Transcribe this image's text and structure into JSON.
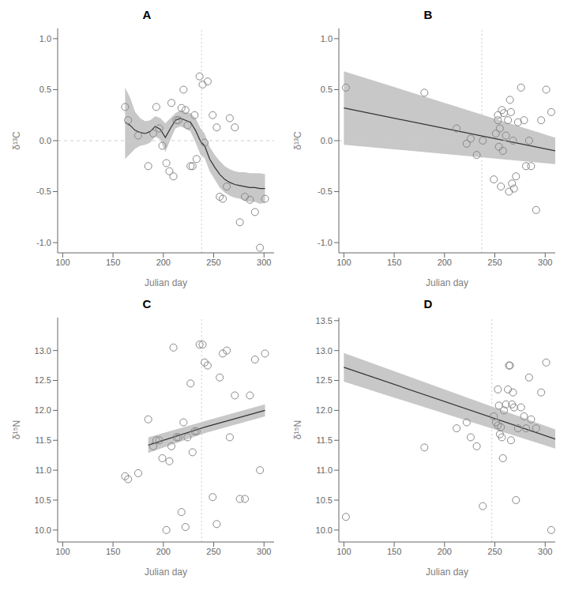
{
  "chart_data": [
    {
      "type": "scatter",
      "title": "A",
      "x_label": "Julian day",
      "y_label": "δ¹³C",
      "grid": false,
      "xlim": [
        95,
        310
      ],
      "xticks": [
        100,
        150,
        200,
        250,
        300
      ],
      "ylim": [
        -1.1,
        1.1
      ],
      "yticks": [
        {
          "value": -1.0,
          "label": "-1.0"
        },
        -0.5,
        {
          "value": 0.0,
          "label": "0.0"
        },
        0.5,
        {
          "value": 1.0,
          "label": "1.0"
        }
      ],
      "vline": 238,
      "hline": 0,
      "series": [
        {
          "type": "band",
          "color": "#c8c8c8",
          "x": [
            162,
            167,
            172,
            177,
            182,
            187,
            192,
            197,
            202,
            207,
            212,
            217,
            222,
            227,
            232,
            237,
            241,
            246,
            251,
            256,
            261,
            266,
            271,
            276,
            281,
            286,
            291,
            296,
            301
          ],
          "upper": [
            0.52,
            0.42,
            0.28,
            0.22,
            0.19,
            0.2,
            0.24,
            0.22,
            0.17,
            0.22,
            0.27,
            0.3,
            0.28,
            0.27,
            0.22,
            0.12,
            0.07,
            -0.06,
            -0.14,
            -0.2,
            -0.25,
            -0.28,
            -0.3,
            -0.31,
            -0.31,
            -0.32,
            -0.32,
            -0.32,
            -0.33
          ],
          "lower": [
            -0.18,
            -0.13,
            -0.08,
            -0.05,
            -0.04,
            -0.02,
            0.04,
            0.01,
            -0.11,
            0.01,
            0.12,
            0.14,
            0.12,
            0.09,
            -0.02,
            -0.14,
            -0.17,
            -0.3,
            -0.38,
            -0.46,
            -0.51,
            -0.54,
            -0.56,
            -0.57,
            -0.59,
            -0.6,
            -0.6,
            -0.62,
            -0.61
          ]
        },
        {
          "type": "line",
          "color": "#333333",
          "x": [
            162,
            167,
            172,
            177,
            182,
            187,
            192,
            197,
            202,
            207,
            212,
            217,
            222,
            227,
            232,
            237,
            241,
            246,
            251,
            256,
            261,
            266,
            271,
            276,
            281,
            286,
            291,
            296,
            301
          ],
          "values": [
            0.18,
            0.15,
            0.1,
            0.08,
            0.07,
            0.09,
            0.14,
            0.11,
            0.03,
            0.12,
            0.2,
            0.22,
            0.2,
            0.18,
            0.1,
            -0.01,
            -0.05,
            -0.18,
            -0.26,
            -0.33,
            -0.38,
            -0.41,
            -0.43,
            -0.44,
            -0.45,
            -0.46,
            -0.46,
            -0.47,
            -0.47
          ]
        },
        {
          "type": "scatter",
          "color": "#888888",
          "marker": "circle",
          "x": [
            162,
            165,
            175,
            185,
            190,
            193,
            196,
            199,
            203,
            206,
            208,
            210,
            213,
            215,
            218,
            220,
            222,
            224,
            227,
            229,
            231,
            233,
            236,
            239,
            241,
            244,
            249,
            253,
            256,
            259,
            263,
            266,
            271,
            276,
            281,
            286,
            291,
            296,
            301
          ],
          "values": [
            0.33,
            0.2,
            0.05,
            -0.25,
            0.07,
            0.33,
            0.12,
            -0.05,
            -0.22,
            -0.3,
            0.37,
            -0.35,
            0.2,
            0.2,
            0.32,
            0.5,
            0.3,
            0.15,
            -0.25,
            -0.25,
            0.25,
            -0.18,
            0.63,
            0.55,
            -0.02,
            0.58,
            0.25,
            0.13,
            -0.55,
            -0.57,
            -0.45,
            0.22,
            0.13,
            -0.8,
            -0.55,
            -0.58,
            -0.7,
            -1.05,
            -0.57
          ]
        }
      ]
    },
    {
      "type": "scatter",
      "title": "B",
      "x_label": "Julian day",
      "y_label": "δ¹³C",
      "grid": false,
      "xlim": [
        95,
        310
      ],
      "xticks": [
        100,
        150,
        200,
        250,
        300
      ],
      "ylim": [
        -1.1,
        1.1
      ],
      "yticks": [
        {
          "value": -1.0,
          "label": "-1.0"
        },
        -0.5,
        {
          "value": 0.0,
          "label": "0.0"
        },
        0.5,
        {
          "value": 1.0,
          "label": "1.0"
        }
      ],
      "vline": 237,
      "hline": 0,
      "series": [
        {
          "type": "band",
          "color": "#c8c8c8",
          "x": [
            100,
            310
          ],
          "upper": [
            0.68,
            0.03
          ],
          "lower": [
            -0.04,
            -0.23
          ]
        },
        {
          "type": "line",
          "color": "#333333",
          "x": [
            100,
            310
          ],
          "values": [
            0.32,
            -0.1
          ]
        },
        {
          "type": "scatter",
          "color": "#888888",
          "marker": "circle",
          "x": [
            102,
            180,
            212,
            222,
            226,
            232,
            238,
            249,
            251,
            253,
            253,
            254,
            255,
            256,
            257,
            258,
            259,
            261,
            263,
            264,
            265,
            266,
            267,
            268,
            269,
            271,
            273,
            276,
            279,
            281,
            284,
            286,
            291,
            296,
            301,
            306
          ],
          "values": [
            0.52,
            0.47,
            0.12,
            -0.03,
            0.02,
            -0.14,
            0.0,
            -0.38,
            0.07,
            0.25,
            0.2,
            -0.06,
            0.12,
            -0.45,
            0.3,
            -0.1,
            0.27,
            0.05,
            0.2,
            -0.5,
            0.4,
            0.28,
            -0.42,
            0.0,
            -0.47,
            -0.35,
            0.18,
            0.52,
            0.2,
            -0.25,
            0.0,
            -0.25,
            -0.68,
            0.2,
            0.5,
            0.28
          ]
        }
      ]
    },
    {
      "type": "scatter",
      "title": "C",
      "x_label": "Julian day",
      "y_label": "δ¹⁵N",
      "grid": false,
      "xlim": [
        95,
        310
      ],
      "xticks": [
        100,
        150,
        200,
        250,
        300
      ],
      "ylim": [
        9.8,
        13.55
      ],
      "yticks": [
        {
          "value": 10.0,
          "label": "10.0"
        },
        10.5,
        {
          "value": 11.0,
          "label": "11.0"
        },
        11.5,
        {
          "value": 12.0,
          "label": "12.0"
        },
        12.5,
        {
          "value": 13.0,
          "label": "13.0"
        }
      ],
      "vline": 238,
      "series": [
        {
          "type": "band",
          "color": "#c8c8c8",
          "x": [
            185,
            241,
            301
          ],
          "upper": [
            11.55,
            11.82,
            12.1
          ],
          "lower": [
            11.29,
            11.62,
            11.9
          ]
        },
        {
          "type": "line",
          "color": "#333333",
          "x": [
            185,
            241,
            301
          ],
          "values": [
            11.42,
            11.72,
            12.0
          ]
        },
        {
          "type": "scatter",
          "color": "#888888",
          "marker": "circle",
          "x": [
            162,
            165,
            175,
            185,
            190,
            193,
            196,
            199,
            203,
            206,
            208,
            210,
            213,
            215,
            218,
            220,
            222,
            224,
            227,
            229,
            231,
            233,
            236,
            239,
            241,
            244,
            249,
            253,
            256,
            259,
            263,
            266,
            271,
            276,
            281,
            286,
            291,
            296,
            301
          ],
          "values": [
            10.9,
            10.85,
            10.95,
            11.85,
            11.4,
            11.5,
            11.5,
            11.2,
            10.0,
            11.15,
            11.4,
            13.05,
            11.55,
            11.55,
            10.3,
            11.8,
            10.05,
            11.55,
            12.45,
            11.3,
            11.65,
            11.65,
            13.1,
            13.1,
            12.8,
            12.75,
            10.55,
            10.1,
            12.55,
            12.95,
            13.0,
            11.55,
            12.25,
            10.52,
            10.52,
            12.25,
            12.85,
            11.0,
            12.95
          ]
        }
      ]
    },
    {
      "type": "scatter",
      "title": "D",
      "x_label": "Julian day",
      "y_label": "δ¹⁵N",
      "grid": false,
      "xlim": [
        95,
        310
      ],
      "xticks": [
        100,
        150,
        200,
        250,
        300
      ],
      "ylim": [
        9.8,
        13.55
      ],
      "yticks": [
        {
          "value": 10.0,
          "label": "10.0"
        },
        10.5,
        {
          "value": 11.0,
          "label": "11.0"
        },
        11.5,
        {
          "value": 12.0,
          "label": "12.0"
        },
        12.5,
        {
          "value": 13.0,
          "label": "13.0"
        },
        13.5
      ],
      "vline": 247,
      "series": [
        {
          "type": "band",
          "color": "#c8c8c8",
          "x": [
            100,
            310
          ],
          "upper": [
            12.96,
            11.68
          ],
          "lower": [
            12.48,
            11.36
          ]
        },
        {
          "type": "line",
          "color": "#333333",
          "x": [
            100,
            310
          ],
          "values": [
            12.72,
            11.52
          ]
        },
        {
          "type": "scatter",
          "color": "#888888",
          "marker": "circle",
          "x": [
            102,
            180,
            212,
            222,
            226,
            232,
            238,
            249,
            251,
            253,
            253,
            254,
            255,
            256,
            257,
            258,
            259,
            261,
            263,
            264,
            265,
            266,
            267,
            268,
            269,
            271,
            273,
            276,
            279,
            281,
            284,
            286,
            291,
            296,
            301,
            306
          ],
          "values": [
            10.22,
            11.38,
            11.7,
            11.8,
            11.55,
            11.4,
            10.4,
            11.9,
            11.8,
            11.75,
            12.35,
            12.08,
            11.6,
            11.72,
            11.55,
            11.2,
            12.0,
            12.1,
            12.35,
            12.75,
            12.75,
            11.5,
            12.1,
            12.3,
            12.05,
            10.5,
            11.7,
            12.05,
            11.9,
            11.7,
            12.55,
            11.85,
            11.7,
            12.3,
            12.8,
            10.0
          ]
        }
      ]
    }
  ]
}
